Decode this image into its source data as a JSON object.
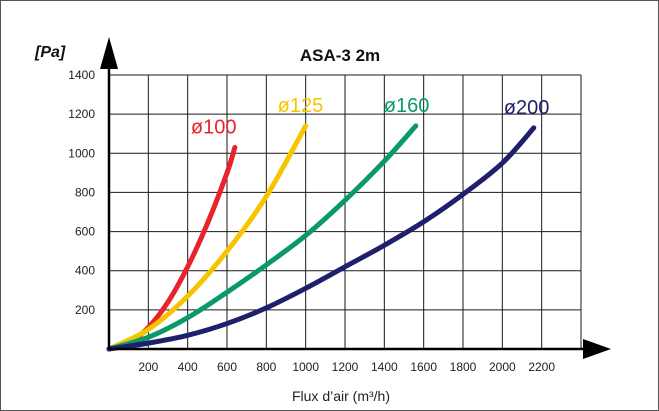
{
  "chart_data": {
    "type": "line",
    "title": "ASA-3 2m",
    "ylabel": "[Pa]",
    "xlabel": "Flux d’air (m³/h)",
    "xlim": [
      0,
      2400
    ],
    "ylim": [
      0,
      1400
    ],
    "x_ticks": [
      200,
      400,
      600,
      800,
      1000,
      1200,
      1400,
      1600,
      1800,
      2000,
      2200
    ],
    "y_ticks": [
      200,
      400,
      600,
      800,
      1000,
      1200,
      1400
    ],
    "grid": true,
    "series": [
      {
        "name": "ø100",
        "color": "#e8232c",
        "x": [
          0,
          100,
          200,
          300,
          400,
          500,
          600,
          640
        ],
        "y": [
          0,
          30,
          110,
          240,
          420,
          640,
          900,
          1030
        ]
      },
      {
        "name": "ø125",
        "color": "#f7c400",
        "x": [
          0,
          200,
          400,
          600,
          800,
          1000
        ],
        "y": [
          0,
          100,
          270,
          500,
          780,
          1140
        ]
      },
      {
        "name": "ø160",
        "color": "#0a9a6a",
        "x": [
          0,
          200,
          400,
          600,
          800,
          1000,
          1200,
          1400,
          1560
        ],
        "y": [
          0,
          60,
          160,
          290,
          430,
          580,
          760,
          960,
          1140
        ]
      },
      {
        "name": "ø200",
        "color": "#1f1f6b",
        "x": [
          0,
          200,
          400,
          600,
          800,
          1000,
          1200,
          1400,
          1600,
          1800,
          2000,
          2160
        ],
        "y": [
          0,
          30,
          70,
          130,
          210,
          310,
          420,
          530,
          650,
          790,
          950,
          1130
        ]
      }
    ]
  }
}
